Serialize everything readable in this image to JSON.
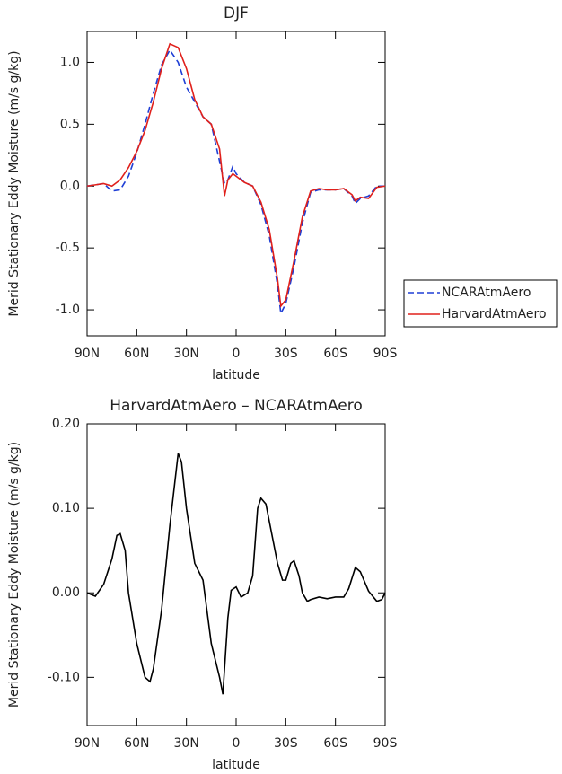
{
  "chart_data": [
    {
      "type": "line",
      "title": "DJF",
      "xlabel": "latitude",
      "ylabel": "Merid Stationary Eddy Moisture (m/s g/kg)",
      "x": [
        90,
        85,
        80,
        75,
        70,
        65,
        60,
        55,
        50,
        45,
        40,
        35,
        30,
        25,
        20,
        15,
        10,
        7,
        5,
        2,
        0,
        -5,
        -10,
        -15,
        -20,
        -25,
        -27,
        -30,
        -35,
        -40,
        -45,
        -50,
        -55,
        -60,
        -65,
        -70,
        -72,
        -75,
        -80,
        -85,
        -90
      ],
      "series": [
        {
          "name": "NCARAtmAero",
          "color": "#1f3fd6",
          "linestyle": "dashed",
          "values": [
            0,
            0.01,
            0.02,
            -0.04,
            -0.03,
            0.08,
            0.27,
            0.5,
            0.75,
            0.98,
            1.1,
            1.0,
            0.8,
            0.68,
            0.56,
            0.5,
            0.2,
            0.02,
            0.05,
            0.16,
            0.1,
            0.03,
            0.0,
            -0.15,
            -0.4,
            -0.8,
            -1.03,
            -0.95,
            -0.65,
            -0.3,
            -0.05,
            -0.03,
            -0.03,
            -0.03,
            -0.02,
            -0.08,
            -0.14,
            -0.1,
            -0.08,
            0.0,
            0.0
          ]
        },
        {
          "name": "HarvardAtmAero",
          "color": "#e0201b",
          "linestyle": "solid",
          "values": [
            0,
            0.01,
            0.02,
            0.0,
            0.05,
            0.15,
            0.28,
            0.45,
            0.68,
            0.95,
            1.15,
            1.12,
            0.95,
            0.7,
            0.56,
            0.5,
            0.3,
            -0.08,
            0.05,
            0.1,
            0.08,
            0.03,
            0.0,
            -0.13,
            -0.35,
            -0.75,
            -0.97,
            -0.92,
            -0.6,
            -0.25,
            -0.04,
            -0.02,
            -0.03,
            -0.03,
            -0.02,
            -0.07,
            -0.12,
            -0.09,
            -0.1,
            -0.01,
            0.0
          ]
        }
      ],
      "xlim": [
        90,
        -90
      ],
      "xticks": [
        {
          "value": 90,
          "label": "90N"
        },
        {
          "value": 60,
          "label": "60N"
        },
        {
          "value": 30,
          "label": "30N"
        },
        0,
        {
          "value": -30,
          "label": "30S"
        },
        {
          "value": -60,
          "label": "60S"
        },
        {
          "value": -90,
          "label": "90S"
        }
      ],
      "ylim": [
        -1.21,
        1.25
      ],
      "yticks": [
        {
          "value": 1,
          "label": "1.0"
        },
        0.5,
        {
          "value": 0,
          "label": "0.0"
        },
        -0.5,
        {
          "value": -1,
          "label": "-1.0"
        }
      ],
      "legend_position": "right"
    },
    {
      "type": "line",
      "title": "HarvardAtmAero – NCARAtmAero",
      "xlabel": "latitude",
      "ylabel": "Merid Stationary Eddy Moisture (m/s g/kg)",
      "x": [
        90,
        85,
        80,
        75,
        72,
        70,
        67,
        65,
        60,
        55,
        52,
        50,
        45,
        40,
        35,
        33,
        30,
        25,
        20,
        15,
        10,
        8,
        5,
        3,
        0,
        -3,
        -7,
        -10,
        -13,
        -15,
        -18,
        -20,
        -25,
        -28,
        -30,
        -33,
        -35,
        -38,
        -40,
        -43,
        -45,
        -50,
        -55,
        -60,
        -65,
        -68,
        -72,
        -75,
        -80,
        -85,
        -88,
        -90
      ],
      "values": [
        0,
        -0.004,
        0.01,
        0.04,
        0.068,
        0.07,
        0.05,
        0.0,
        -0.06,
        -0.1,
        -0.105,
        -0.09,
        -0.02,
        0.08,
        0.165,
        0.155,
        0.1,
        0.035,
        0.015,
        -0.06,
        -0.1,
        -0.12,
        -0.03,
        0.003,
        0.007,
        -0.005,
        0.0,
        0.02,
        0.1,
        0.112,
        0.105,
        0.085,
        0.035,
        0.015,
        0.015,
        0.035,
        0.038,
        0.02,
        0.0,
        -0.01,
        -0.008,
        -0.005,
        -0.007,
        -0.005,
        -0.005,
        0.005,
        0.03,
        0.025,
        0.002,
        -0.01,
        -0.008,
        0.0
      ],
      "color": "#000000",
      "xlim": [
        90,
        -90
      ],
      "xticks": [
        {
          "value": 90,
          "label": "90N"
        },
        {
          "value": 60,
          "label": "60N"
        },
        {
          "value": 30,
          "label": "30N"
        },
        0,
        {
          "value": -30,
          "label": "30S"
        },
        {
          "value": -60,
          "label": "60S"
        },
        {
          "value": -90,
          "label": "90S"
        }
      ],
      "ylim": [
        -0.157,
        0.2
      ],
      "yticks": [
        {
          "value": 0.2,
          "label": "0.20"
        },
        {
          "value": 0.1,
          "label": "0.10"
        },
        {
          "value": 0,
          "label": "0.00"
        },
        {
          "value": -0.1,
          "label": "-0.10"
        }
      ]
    }
  ]
}
